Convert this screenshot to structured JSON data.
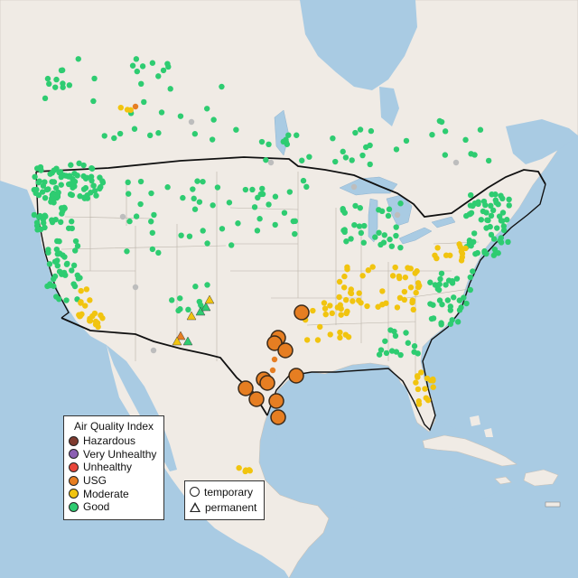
{
  "legend": {
    "title": "Air Quality Index",
    "categories": [
      {
        "label": "Hazardous",
        "color": "#7e3a2e"
      },
      {
        "label": "Very Unhealthy",
        "color": "#8b5fb3"
      },
      {
        "label": "Unhealthy",
        "color": "#e8463b"
      },
      {
        "label": "USG",
        "color": "#e67e22"
      },
      {
        "label": "Moderate",
        "color": "#f1c40f"
      },
      {
        "label": "Good",
        "color": "#2ecc71"
      }
    ],
    "monitor_types": {
      "temporary": "temporary",
      "permanent": "permanent"
    }
  },
  "colors": {
    "water": "#a9cbe3",
    "land": "#f0ebe5",
    "no_data": "#bdbdbd"
  },
  "markers": {
    "usg_temporary_count": 15,
    "permanent_sites": [
      "Moderate",
      "Good",
      "USG"
    ]
  }
}
